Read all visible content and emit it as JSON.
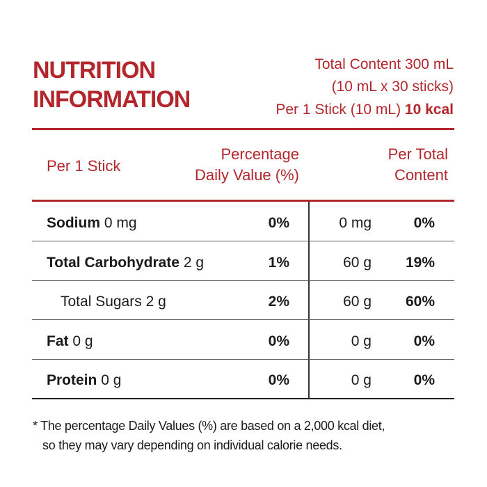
{
  "header": {
    "title_lines": [
      "NUTRITION",
      "INFORMATION"
    ],
    "total_content": "Total Content 300 mL",
    "sticks": "(10 mL x 30 sticks)",
    "per_stick": "Per 1 Stick (10 mL)",
    "kcal": "10 kcal"
  },
  "table": {
    "column_1": "Per 1 Stick",
    "column_2_lines": [
      "Percentage",
      "Daily Value (%)"
    ],
    "column_3_lines": [
      "Per Total",
      "Content"
    ],
    "rows": [
      {
        "name": "Sodium",
        "amount": "0 mg",
        "dv": "0%",
        "total_amount": "0 mg",
        "total_dv": "0%"
      },
      {
        "name": "Total Carbohydrate",
        "amount": "2 g",
        "dv": "1%",
        "total_amount": "60 g",
        "total_dv": "19%"
      },
      {
        "name": "Total Sugars",
        "amount": "2 g",
        "dv": "2%",
        "total_amount": "60 g",
        "total_dv": "60%"
      },
      {
        "name": "Fat",
        "amount": "0 g",
        "dv": "0%",
        "total_amount": "0 g",
        "total_dv": "0%"
      },
      {
        "name": "Protein",
        "amount": "0 g",
        "dv": "0%",
        "total_amount": "0 g",
        "total_dv": "0%"
      }
    ]
  },
  "footnote": [
    "* The percentage Daily Values (%) are based on a 2,000 kcal diet,",
    "so they may vary depending on individual calorie needs."
  ]
}
